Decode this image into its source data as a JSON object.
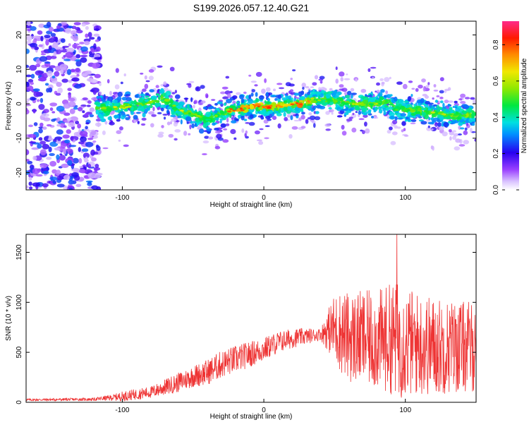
{
  "chart_data": [
    {
      "type": "heatmap",
      "title": "S199.2026.057.12.40.G21",
      "xlabel": "Height of straight line (km)",
      "ylabel": "Frequency (Hz)",
      "xlim": [
        -168,
        150
      ],
      "ylim": [
        -25,
        24
      ],
      "x_ticks": [
        -100,
        0,
        100
      ],
      "y_ticks": [
        -20,
        -10,
        0,
        10,
        20
      ],
      "colorbar": {
        "label": "Normalized spectral amplitude",
        "range": [
          0,
          0.93
        ],
        "ticks": [
          0.0,
          0.2,
          0.4,
          0.6,
          0.8
        ]
      },
      "ridge": {
        "x": [
          -115,
          -100,
          -85,
          -70,
          -60,
          -50,
          -40,
          -33,
          -25,
          -15,
          -5,
          5,
          15,
          25,
          35,
          45,
          55,
          65,
          75,
          85,
          95,
          110,
          125,
          140,
          150
        ],
        "y": [
          -1.5,
          -1,
          0,
          1.5,
          -2,
          -3,
          -5,
          -3.5,
          -2,
          -1.5,
          -0.5,
          -1,
          -0.5,
          0,
          1,
          1.5,
          0.5,
          0,
          0,
          0.5,
          -1.5,
          -2,
          -3,
          -3.5,
          -3
        ],
        "peak_amplitude": 0.9,
        "peak_x_range": [
          -25,
          35
        ]
      }
    },
    {
      "type": "line",
      "xlabel": "Height of straight line (km)",
      "ylabel": "SNR (10 * v/v)",
      "xlim": [
        -168,
        150
      ],
      "ylim": [
        0,
        1680
      ],
      "x_ticks": [
        -100,
        0,
        100
      ],
      "y_ticks": [
        0,
        500,
        1000,
        1500
      ],
      "series": [
        {
          "name": "SNR",
          "color": "#ee3333",
          "envelope_x": [
            -168,
            -120,
            -105,
            -100,
            -90,
            -80,
            -70,
            -60,
            -50,
            -40,
            -30,
            -20,
            -10,
            0,
            10,
            20,
            30,
            40,
            45,
            50,
            55,
            60,
            70,
            80,
            90,
            95,
            100,
            110,
            120,
            130,
            140,
            150
          ],
          "envelope_mean": [
            25,
            30,
            50,
            60,
            80,
            100,
            150,
            200,
            260,
            300,
            380,
            430,
            480,
            530,
            600,
            640,
            660,
            680,
            720,
            740,
            700,
            650,
            640,
            620,
            640,
            620,
            600,
            580,
            560,
            560,
            560,
            550
          ],
          "envelope_spread": [
            12,
            15,
            35,
            50,
            55,
            60,
            80,
            100,
            110,
            130,
            140,
            140,
            130,
            120,
            110,
            100,
            80,
            60,
            200,
            350,
            420,
            450,
            480,
            500,
            560,
            600,
            560,
            520,
            500,
            480,
            460,
            460
          ],
          "peak": {
            "x": 94,
            "y": 1680
          }
        }
      ]
    }
  ]
}
